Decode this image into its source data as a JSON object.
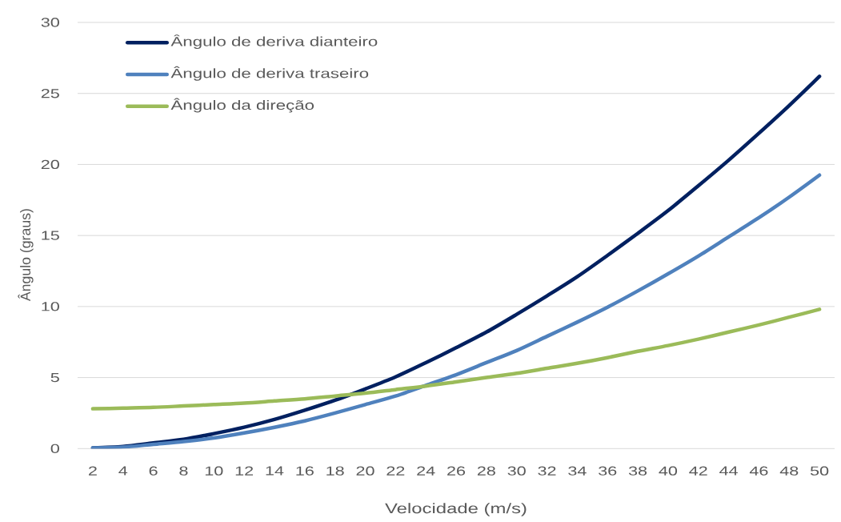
{
  "chart_data": {
    "type": "line",
    "xlabel": "Velocidade (m/s)",
    "ylabel": "Ângulo (graus)",
    "categories": [
      "2",
      "4",
      "6",
      "8",
      "10",
      "12",
      "14",
      "16",
      "18",
      "20",
      "22",
      "24",
      "26",
      "28",
      "30",
      "32",
      "34",
      "36",
      "38",
      "40",
      "42",
      "44",
      "46",
      "48",
      "50"
    ],
    "series": [
      {
        "name": "Ângulo de deriva dianteiro",
        "color": "#002060",
        "values": [
          0.05,
          0.15,
          0.4,
          0.65,
          1.05,
          1.5,
          2.05,
          2.7,
          3.4,
          4.2,
          5.05,
          6.05,
          7.1,
          8.2,
          9.45,
          10.75,
          12.1,
          13.6,
          15.15,
          16.75,
          18.5,
          20.3,
          22.2,
          24.15,
          26.2
        ]
      },
      {
        "name": "Ângulo de deriva traseiro",
        "color": "#4f81bd",
        "values": [
          0.05,
          0.1,
          0.3,
          0.5,
          0.75,
          1.1,
          1.5,
          1.95,
          2.5,
          3.1,
          3.7,
          4.45,
          5.2,
          6.05,
          6.9,
          7.9,
          8.9,
          9.95,
          11.1,
          12.3,
          13.55,
          14.9,
          16.25,
          17.7,
          19.25
        ]
      },
      {
        "name": "Ângulo da direção",
        "color": "#9bbb59",
        "values": [
          2.8,
          2.85,
          2.9,
          3.0,
          3.1,
          3.2,
          3.35,
          3.5,
          3.7,
          3.9,
          4.15,
          4.4,
          4.7,
          5.0,
          5.3,
          5.65,
          6.0,
          6.4,
          6.85,
          7.25,
          7.7,
          8.2,
          8.7,
          9.25,
          9.8
        ]
      }
    ],
    "ylim": [
      0,
      30
    ],
    "yticks": [
      0,
      5,
      10,
      15,
      20,
      25,
      30
    ],
    "grid": "y",
    "legend": "top left"
  }
}
